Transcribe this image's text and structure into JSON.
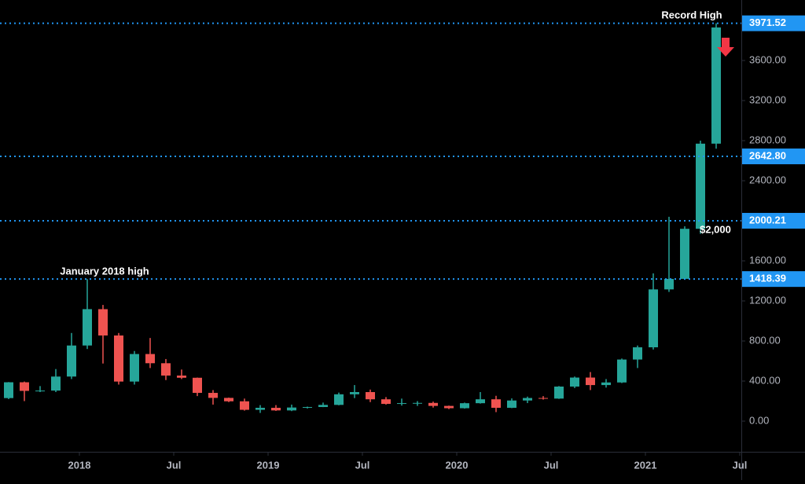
{
  "chart_data": {
    "type": "candlestick",
    "x": [
      "2017-08",
      "2017-09",
      "2017-10",
      "2017-11",
      "2017-12",
      "2018-01",
      "2018-02",
      "2018-03",
      "2018-04",
      "2018-05",
      "2018-06",
      "2018-07",
      "2018-08",
      "2018-09",
      "2018-10",
      "2018-11",
      "2018-12",
      "2019-01",
      "2019-02",
      "2019-03",
      "2019-04",
      "2019-05",
      "2019-06",
      "2019-07",
      "2019-08",
      "2019-09",
      "2019-10",
      "2019-11",
      "2019-12",
      "2020-01",
      "2020-02",
      "2020-03",
      "2020-04",
      "2020-05",
      "2020-06",
      "2020-07",
      "2020-08",
      "2020-09",
      "2020-10",
      "2020-11",
      "2020-12",
      "2021-01",
      "2021-02",
      "2021-03",
      "2021-04",
      "2021-05"
    ],
    "open": [
      230,
      388,
      302,
      305,
      445,
      755,
      1118,
      855,
      395,
      670,
      578,
      455,
      433,
      282,
      232,
      198,
      113,
      133,
      107,
      136,
      141,
      162,
      268,
      290,
      218,
      172,
      180,
      182,
      152,
      129,
      179,
      218,
      133,
      206,
      231,
      225,
      345,
      435,
      360,
      386,
      615,
      737,
      1315,
      1420,
      1920,
      2770
    ],
    "high": [
      390,
      395,
      350,
      520,
      880,
      1418.39,
      1160,
      880,
      700,
      830,
      620,
      515,
      435,
      310,
      235,
      225,
      160,
      160,
      165,
      145,
      185,
      285,
      360,
      315,
      240,
      225,
      200,
      195,
      155,
      185,
      290,
      253,
      227,
      245,
      250,
      350,
      445,
      490,
      420,
      625,
      755,
      1475,
      2040,
      1945,
      2800,
      3971.52
    ],
    "low": [
      220,
      200,
      290,
      290,
      420,
      720,
      575,
      365,
      365,
      530,
      410,
      420,
      250,
      165,
      190,
      105,
      82,
      102,
      100,
      126,
      140,
      158,
      230,
      190,
      165,
      155,
      152,
      135,
      120,
      125,
      175,
      90,
      130,
      180,
      215,
      222,
      330,
      310,
      335,
      380,
      530,
      715,
      1290,
      1440,
      1870,
      2720
    ],
    "close": [
      388,
      302,
      305,
      445,
      755,
      1118,
      855,
      395,
      670,
      578,
      455,
      433,
      282,
      232,
      198,
      113,
      133,
      107,
      136,
      141,
      162,
      268,
      290,
      218,
      172,
      180,
      182,
      152,
      129,
      179,
      218,
      133,
      206,
      231,
      225,
      345,
      435,
      360,
      386,
      615,
      737,
      1315,
      1420,
      1920,
      2770,
      3930
    ],
    "up_color": "#26a69a",
    "down_color": "#ef5350",
    "ylim": [
      -306,
      4204
    ],
    "yticks": [
      {
        "value": 0,
        "label": "0.00"
      },
      {
        "value": 400,
        "label": "400.00"
      },
      {
        "value": 800,
        "label": "800.00"
      },
      {
        "value": 1200,
        "label": "1200.00"
      },
      {
        "value": 1600,
        "label": "1600.00"
      },
      {
        "value": 2400,
        "label": "2400.00"
      },
      {
        "value": 2800,
        "label": "2800.00"
      },
      {
        "value": 3200,
        "label": "3200.00"
      },
      {
        "value": 3600,
        "label": "3600.00"
      }
    ],
    "xticks": [
      {
        "value": "2018-01",
        "label": "2018"
      },
      {
        "value": "2018-07",
        "label": "Jul"
      },
      {
        "value": "2019-01",
        "label": "2019"
      },
      {
        "value": "2019-07",
        "label": "Jul"
      },
      {
        "value": "2020-01",
        "label": "2020"
      },
      {
        "value": "2020-07",
        "label": "Jul"
      },
      {
        "value": "2021-01",
        "label": "2021"
      },
      {
        "value": "2021-07",
        "label": "Jul"
      }
    ],
    "levels": [
      {
        "value": 3971.52,
        "label": "3971.52"
      },
      {
        "value": 2642.8,
        "label": "2642.80"
      },
      {
        "value": 2000.21,
        "label": "2000.21"
      },
      {
        "value": 1418.39,
        "label": "1418.39"
      }
    ],
    "level_color": "#2196f3",
    "annotations": [
      "Record High",
      "January 2018 high",
      "$2,000"
    ]
  }
}
